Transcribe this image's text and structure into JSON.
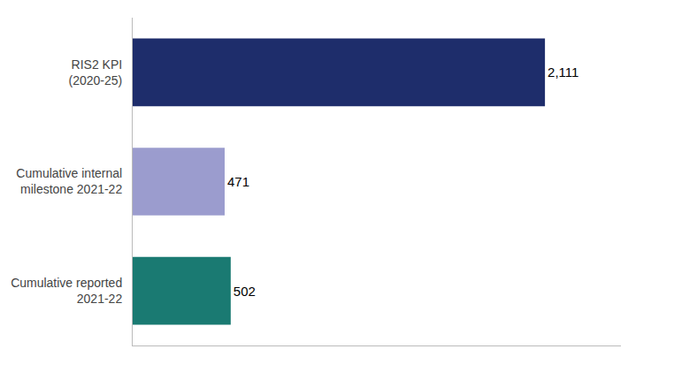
{
  "chart_data": {
    "type": "bar",
    "orientation": "horizontal",
    "categories": [
      "Cumulative reported\n2021-22",
      "Cumulative internal\nmilestone 2021-22",
      "RIS2 KPI\n(2020-25)"
    ],
    "values": [
      502,
      471,
      2111
    ],
    "value_labels": [
      "502",
      "471",
      "2,111"
    ],
    "data_labels": true,
    "colors": [
      "#1a7a72",
      "#9b9cce",
      "#1e2d6b"
    ],
    "xlim": [
      0,
      2500
    ],
    "grid": false,
    "tick_labels": "y"
  }
}
